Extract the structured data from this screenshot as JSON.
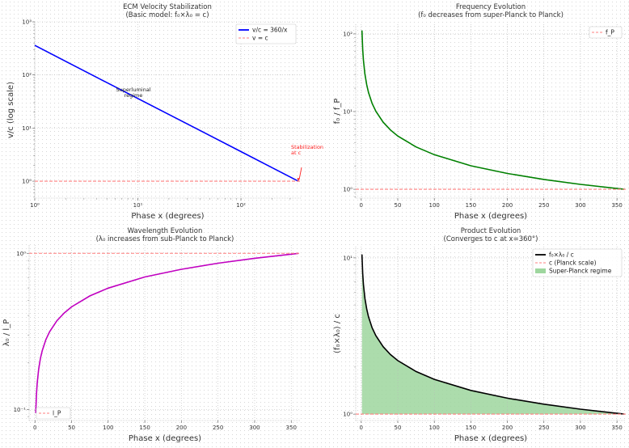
{
  "chart_data": [
    {
      "type": "line",
      "title": "ECM Velocity Stabilization",
      "subtitle": "(Basic model: f₀×λ₀ = c)",
      "xlabel": "Phase x (degrees)",
      "ylabel": "v/c (log scale)",
      "xscale": "log",
      "yscale": "log",
      "xlim": [
        1,
        380
      ],
      "ylim": [
        0.48,
        1000
      ],
      "grid": true,
      "xticks": [
        {
          "v": 1,
          "label": "10⁰"
        },
        {
          "v": 10,
          "label": "10¹"
        },
        {
          "v": 100,
          "label": "10²"
        }
      ],
      "yticks": [
        {
          "v": 1,
          "label": "10⁰"
        },
        {
          "v": 10,
          "label": "10¹"
        },
        {
          "v": 100,
          "label": "10²"
        },
        {
          "v": 1000,
          "label": "10³"
        }
      ],
      "legend_position": "top-right",
      "series": [
        {
          "name": "v/c = 360/x",
          "color": "#0000ff",
          "style": "solid",
          "x": [
            1,
            2,
            5,
            10,
            20,
            50,
            100,
            200,
            360
          ],
          "y": [
            360,
            180,
            72,
            36,
            18,
            7.2,
            3.6,
            1.8,
            1
          ]
        },
        {
          "name": "v = c",
          "color": "#ff7f7f",
          "style": "dashed",
          "hline": 1
        }
      ],
      "annotations": [
        {
          "text": [
            "Superluminal",
            "regime"
          ],
          "x": 11,
          "y": 45,
          "color": "#222222"
        },
        {
          "text": [
            "Stabilization",
            "at c"
          ],
          "x": 360,
          "y": 1,
          "color": "#ff2020",
          "arrow": true
        }
      ]
    },
    {
      "type": "line",
      "title": "Frequency Evolution",
      "subtitle": "(f₀ decreases from super-Planck to Planck)",
      "xlabel": "Phase x (degrees)",
      "ylabel": "f₀ / f_P",
      "xscale": "linear",
      "yscale": "log",
      "xlim": [
        -7.5,
        362
      ],
      "ylim": [
        0.77,
        133
      ],
      "grid": true,
      "xticks": [
        {
          "v": 0,
          "label": "0"
        },
        {
          "v": 50,
          "label": "50"
        },
        {
          "v": 100,
          "label": "100"
        },
        {
          "v": 150,
          "label": "150"
        },
        {
          "v": 200,
          "label": "200"
        },
        {
          "v": 250,
          "label": "250"
        },
        {
          "v": 300,
          "label": "300"
        },
        {
          "v": 350,
          "label": "350"
        }
      ],
      "yticks": [
        {
          "v": 1,
          "label": "10⁰"
        },
        {
          "v": 10,
          "label": "10¹"
        },
        {
          "v": 100,
          "label": "10²"
        }
      ],
      "legend_position": "top-right",
      "series": [
        {
          "name": "",
          "color": "#008000",
          "style": "solid",
          "x": [
            1,
            2,
            3,
            5,
            7.5,
            10,
            15,
            20,
            30,
            40,
            50,
            75,
            100,
            150,
            200,
            250,
            300,
            360
          ],
          "y": [
            110.9,
            63.7,
            46.1,
            30.6,
            22.1,
            17.6,
            12.7,
            10.1,
            7.3,
            5.8,
            4.85,
            3.51,
            2.79,
            2.01,
            1.6,
            1.34,
            1.157,
            1
          ]
        },
        {
          "name": "f_P",
          "color": "#ff7f7f",
          "style": "dashed",
          "hline": 1
        }
      ]
    },
    {
      "type": "line",
      "title": "Wavelength Evolution",
      "subtitle": "(λ₀ increases from sub-Planck to Planck)",
      "xlabel": "Phase x (degrees)",
      "ylabel": "λ₀ / l_P",
      "xscale": "linear",
      "yscale": "log",
      "xlim": [
        -8,
        363
      ],
      "ylim": [
        0.085,
        1.13
      ],
      "grid": true,
      "xticks": [
        {
          "v": 0,
          "label": "0"
        },
        {
          "v": 50,
          "label": "50"
        },
        {
          "v": 100,
          "label": "100"
        },
        {
          "v": 150,
          "label": "150"
        },
        {
          "v": 200,
          "label": "200"
        },
        {
          "v": 250,
          "label": "250"
        },
        {
          "v": 300,
          "label": "300"
        },
        {
          "v": 350,
          "label": "350"
        }
      ],
      "yticks": [
        {
          "v": 0.1,
          "label": "10⁻¹"
        },
        {
          "v": 1,
          "label": "10⁰"
        }
      ],
      "legend_position": "bottom-left",
      "series": [
        {
          "name": "",
          "color": "#c000c0",
          "style": "solid",
          "x": [
            1,
            2,
            3,
            5,
            7.5,
            10,
            15,
            20,
            30,
            40,
            50,
            75,
            100,
            150,
            200,
            250,
            300,
            360
          ],
          "y": [
            0.095,
            0.1253,
            0.1473,
            0.1808,
            0.2127,
            0.2384,
            0.2806,
            0.3147,
            0.3701,
            0.4152,
            0.4541,
            0.5338,
            0.5987,
            0.7053,
            0.7906,
            0.8636,
            0.9297,
            1
          ]
        },
        {
          "name": "l_P",
          "color": "#ff7f7f",
          "style": "dashed",
          "hline": 1
        }
      ]
    },
    {
      "type": "area",
      "title": "Product Evolution",
      "subtitle": "(Converges to c at x=360°)",
      "xlabel": "Phase x (degrees)",
      "ylabel": "(f₀×λ₀) / c",
      "xscale": "linear",
      "yscale": "log",
      "xlim": [
        -7.5,
        362
      ],
      "ylim": [
        0.91,
        11.8
      ],
      "grid": true,
      "xticks": [
        {
          "v": 0,
          "label": "0"
        },
        {
          "v": 50,
          "label": "50"
        },
        {
          "v": 100,
          "label": "100"
        },
        {
          "v": 150,
          "label": "150"
        },
        {
          "v": 200,
          "label": "200"
        },
        {
          "v": 250,
          "label": "250"
        },
        {
          "v": 300,
          "label": "300"
        },
        {
          "v": 350,
          "label": "350"
        }
      ],
      "yticks": [
        {
          "v": 1,
          "label": "10⁰"
        },
        {
          "v": 10,
          "label": "10¹"
        }
      ],
      "legend_position": "top-right",
      "series": [
        {
          "name": "f₀×λ₀ / c",
          "color": "#000000",
          "style": "solid",
          "x": [
            1,
            2,
            3,
            5,
            7.5,
            10,
            15,
            20,
            30,
            40,
            50,
            75,
            100,
            150,
            200,
            250,
            300,
            360
          ],
          "y": [
            10.53,
            7.98,
            6.79,
            5.53,
            4.7,
            4.195,
            3.564,
            3.178,
            2.702,
            2.408,
            2.202,
            1.873,
            1.67,
            1.418,
            1.265,
            1.158,
            1.0756,
            1
          ]
        },
        {
          "name": "c (Planck scale)",
          "color": "#ff7f7f",
          "style": "dashed",
          "hline": 1
        },
        {
          "name": "Super-Planck regime",
          "color": "#9ed69e",
          "style": "fill",
          "fill_between": [
            1,
            0
          ]
        }
      ]
    }
  ]
}
